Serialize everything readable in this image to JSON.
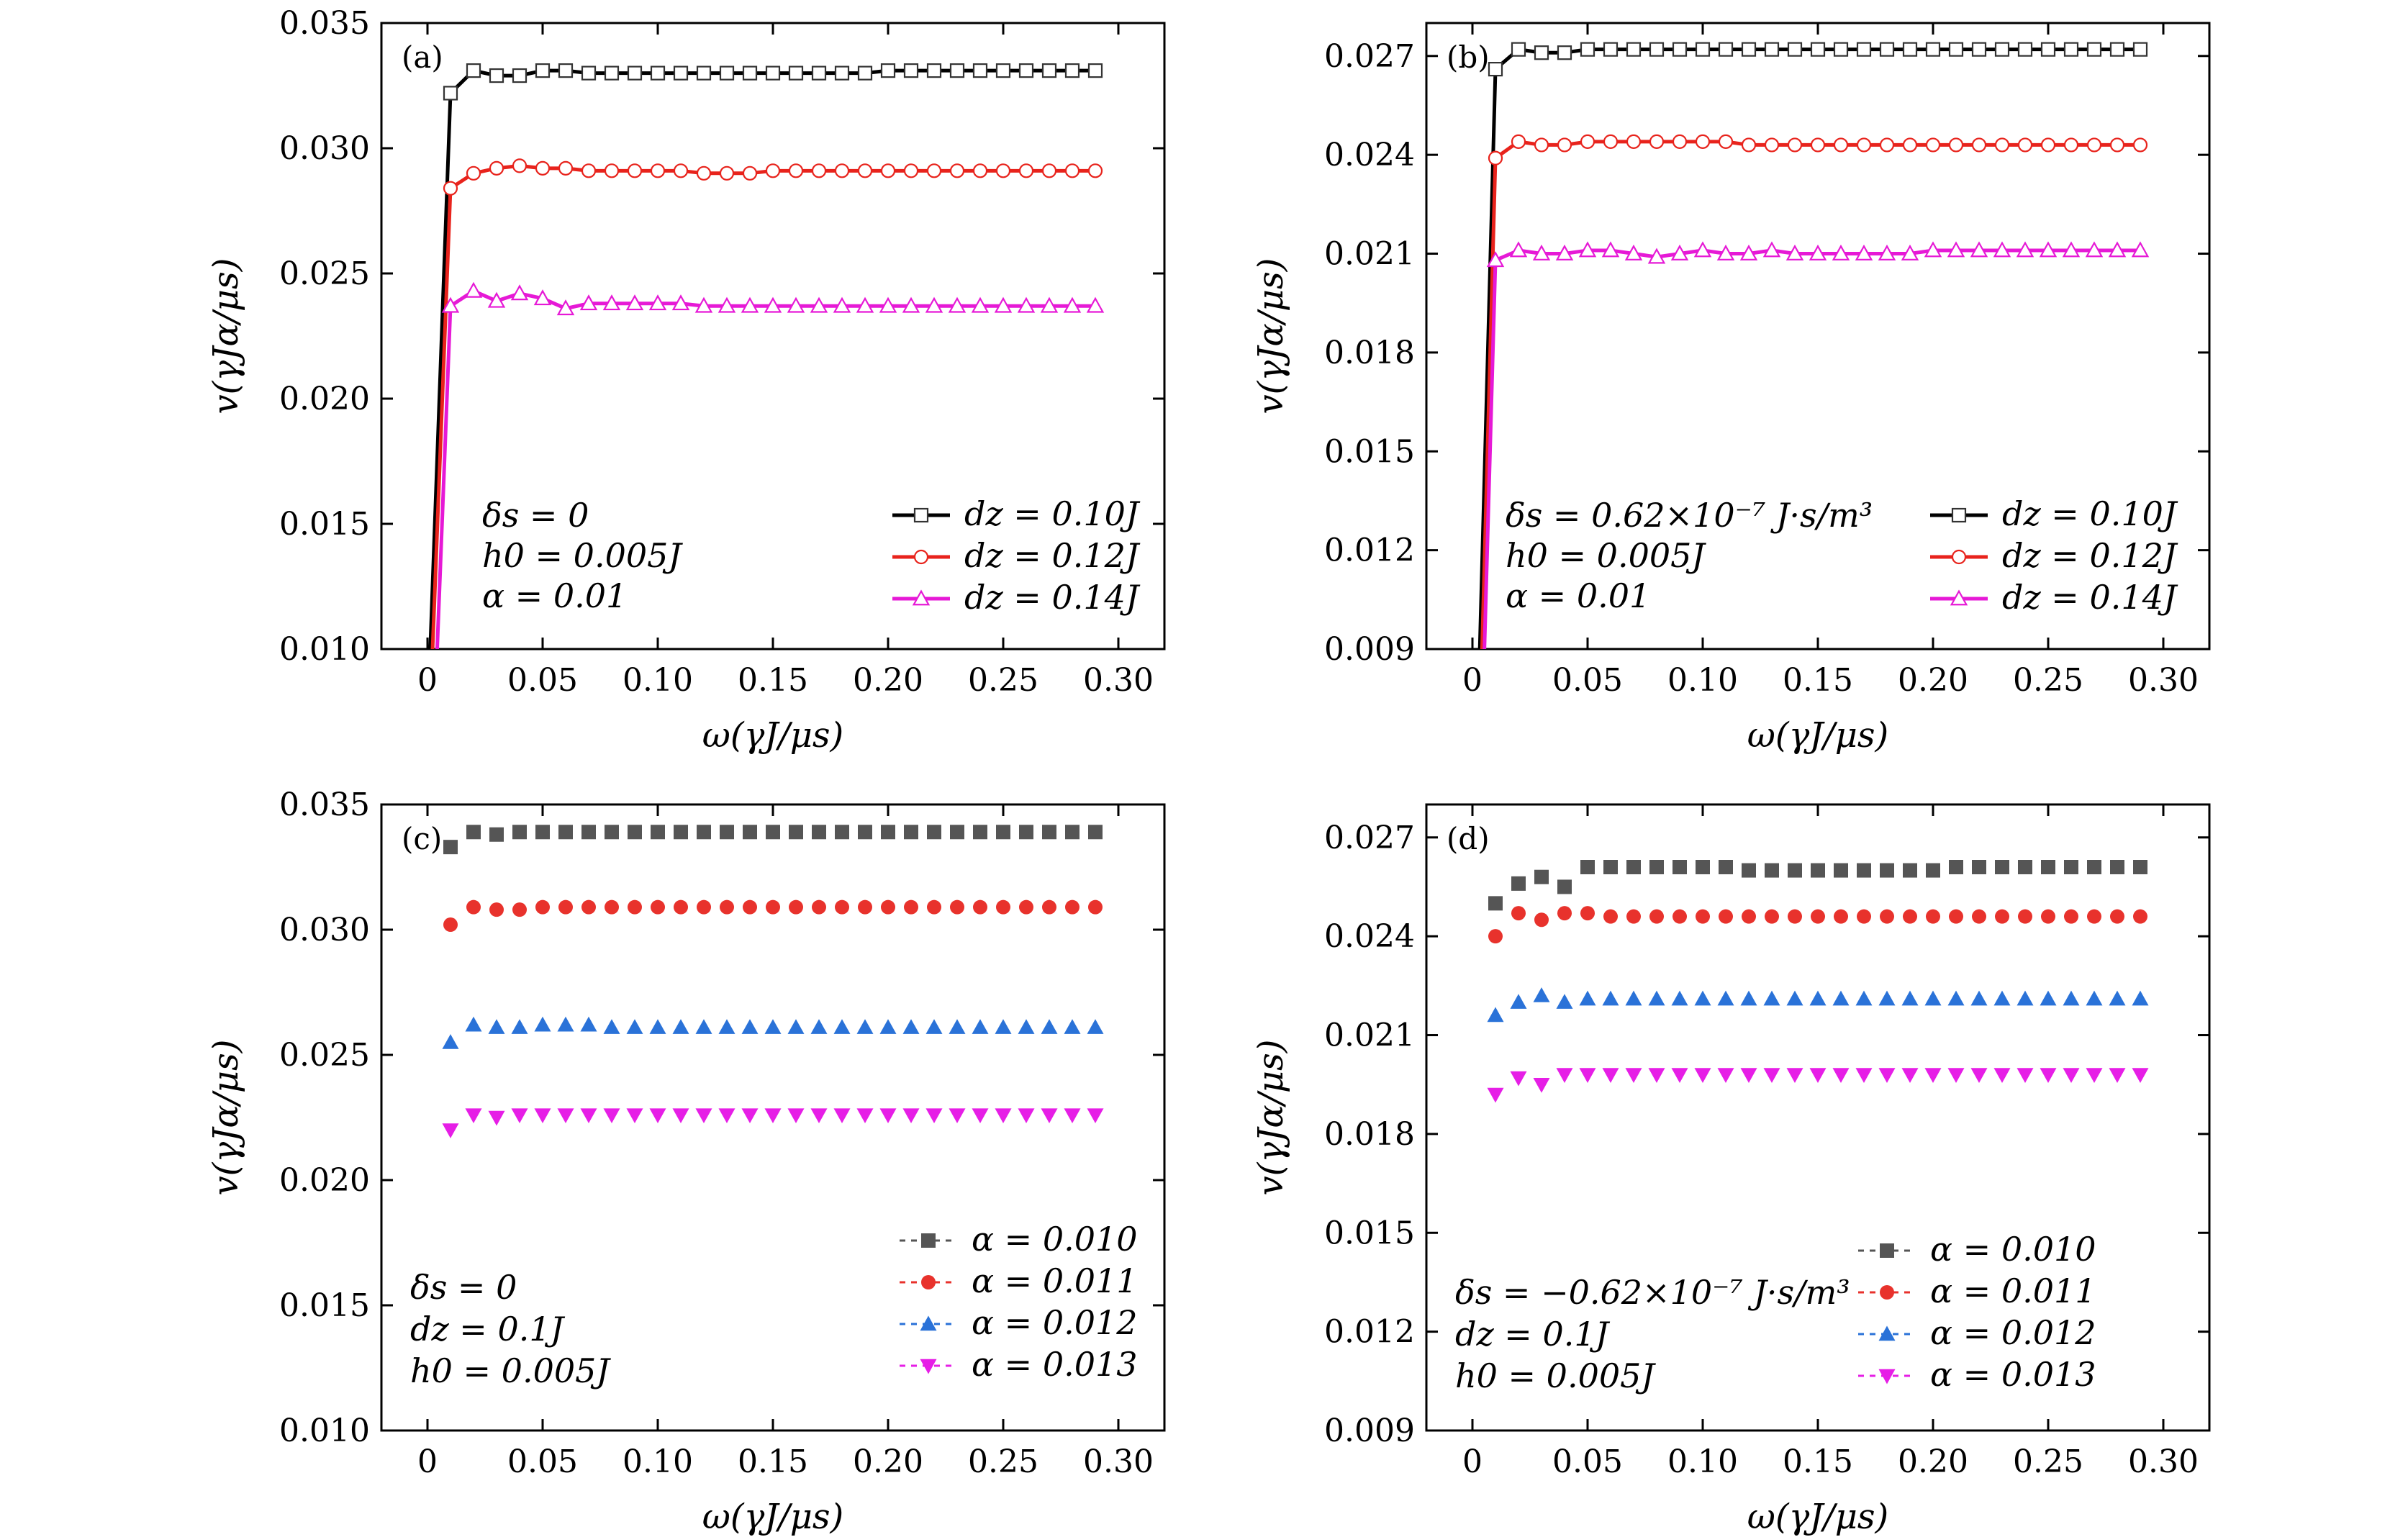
{
  "chart_data": [
    {
      "panel": "(a)",
      "type": "line",
      "marker_style": "open",
      "xlabel": "ω(γJ/μs)",
      "ylabel": "v(γJα/μs)",
      "xlim": [
        -0.02,
        0.32
      ],
      "ylim": [
        0.01,
        0.035
      ],
      "xticks": [
        "0",
        "0.05",
        "0.10",
        "0.15",
        "0.20",
        "0.25",
        "0.30"
      ],
      "yticks": [
        "0.010",
        "0.015",
        "0.020",
        "0.025",
        "0.030",
        "0.035"
      ],
      "annotation": [
        "δs = 0",
        "h0 = 0.005J",
        "α = 0.01"
      ],
      "legend_position": "lower-right",
      "series": [
        {
          "name": "dz = 0.10J",
          "color": "#000000",
          "marker": "square",
          "x0": 0.001,
          "y0": 0.0095,
          "values": [
            0.0322,
            0.0331,
            0.0329,
            0.0329,
            0.0331,
            0.0331,
            0.033,
            0.033,
            0.033,
            0.033,
            0.033,
            0.033,
            0.033,
            0.033,
            0.033,
            0.033,
            0.033,
            0.033,
            0.033,
            0.0331,
            0.0331,
            0.0331,
            0.0331,
            0.0331,
            0.0331,
            0.0331,
            0.0331,
            0.0331,
            0.0331
          ]
        },
        {
          "name": "dz = 0.12J",
          "color": "#e8231c",
          "marker": "circle",
          "x0": 0.002,
          "y0": 0.0095,
          "values": [
            0.0284,
            0.029,
            0.0292,
            0.0293,
            0.0292,
            0.0292,
            0.0291,
            0.0291,
            0.0291,
            0.0291,
            0.0291,
            0.029,
            0.029,
            0.029,
            0.0291,
            0.0291,
            0.0291,
            0.0291,
            0.0291,
            0.0291,
            0.0291,
            0.0291,
            0.0291,
            0.0291,
            0.0291,
            0.0291,
            0.0291,
            0.0291,
            0.0291
          ]
        },
        {
          "name": "dz = 0.14J",
          "color": "#e619d6",
          "marker": "triangle-up",
          "x0": 0.004,
          "y0": 0.0095,
          "values": [
            0.0237,
            0.0243,
            0.0239,
            0.0242,
            0.024,
            0.0236,
            0.0238,
            0.0238,
            0.0238,
            0.0238,
            0.0238,
            0.0237,
            0.0237,
            0.0237,
            0.0237,
            0.0237,
            0.0237,
            0.0237,
            0.0237,
            0.0237,
            0.0237,
            0.0237,
            0.0237,
            0.0237,
            0.0237,
            0.0237,
            0.0237,
            0.0237,
            0.0237
          ]
        }
      ]
    },
    {
      "panel": "(b)",
      "type": "line",
      "marker_style": "open",
      "xlabel": "ω(γJ/μs)",
      "ylabel": "v(γJα/μs)",
      "xlim": [
        -0.02,
        0.32
      ],
      "ylim": [
        0.009,
        0.028
      ],
      "xticks": [
        "0",
        "0.05",
        "0.10",
        "0.15",
        "0.20",
        "0.25",
        "0.30"
      ],
      "yticks": [
        "0.009",
        "0.012",
        "0.015",
        "0.018",
        "0.021",
        "0.024",
        "0.027"
      ],
      "annotation": [
        "δs = 0.62×10⁻⁷ J·s/m³",
        "h0 = 0.005J",
        "α = 0.01"
      ],
      "legend_position": "lower-right",
      "series": [
        {
          "name": "dz = 0.10J",
          "color": "#000000",
          "marker": "square",
          "x0": 0.003,
          "y0": 0.0085,
          "values": [
            0.0266,
            0.0272,
            0.0271,
            0.0271,
            0.0272,
            0.0272,
            0.0272,
            0.0272,
            0.0272,
            0.0272,
            0.0272,
            0.0272,
            0.0272,
            0.0272,
            0.0272,
            0.0272,
            0.0272,
            0.0272,
            0.0272,
            0.0272,
            0.0272,
            0.0272,
            0.0272,
            0.0272,
            0.0272,
            0.0272,
            0.0272,
            0.0272,
            0.0272
          ]
        },
        {
          "name": "dz = 0.12J",
          "color": "#e8231c",
          "marker": "circle",
          "x0": 0.004,
          "y0": 0.0085,
          "values": [
            0.0239,
            0.0244,
            0.0243,
            0.0243,
            0.0244,
            0.0244,
            0.0244,
            0.0244,
            0.0244,
            0.0244,
            0.0244,
            0.0243,
            0.0243,
            0.0243,
            0.0243,
            0.0243,
            0.0243,
            0.0243,
            0.0243,
            0.0243,
            0.0243,
            0.0243,
            0.0243,
            0.0243,
            0.0243,
            0.0243,
            0.0243,
            0.0243,
            0.0243
          ]
        },
        {
          "name": "dz = 0.14J",
          "color": "#e619d6",
          "marker": "triangle-up",
          "x0": 0.005,
          "y0": 0.0085,
          "values": [
            0.0208,
            0.0211,
            0.021,
            0.021,
            0.0211,
            0.0211,
            0.021,
            0.0209,
            0.021,
            0.0211,
            0.021,
            0.021,
            0.0211,
            0.021,
            0.021,
            0.021,
            0.021,
            0.021,
            0.021,
            0.0211,
            0.0211,
            0.0211,
            0.0211,
            0.0211,
            0.0211,
            0.0211,
            0.0211,
            0.0211,
            0.0211
          ]
        }
      ]
    },
    {
      "panel": "(c)",
      "type": "scatter",
      "marker_style": "filled",
      "xlabel": "ω(γJ/μs)",
      "ylabel": "v(γJα/μs)",
      "xlim": [
        -0.02,
        0.32
      ],
      "ylim": [
        0.01,
        0.035
      ],
      "xticks": [
        "0",
        "0.05",
        "0.10",
        "0.15",
        "0.20",
        "0.25",
        "0.30"
      ],
      "yticks": [
        "0.010",
        "0.015",
        "0.020",
        "0.025",
        "0.030",
        "0.035"
      ],
      "annotation": [
        "δs = 0",
        "dz = 0.1J",
        "h0 = 0.005J"
      ],
      "legend_position": "lower-right",
      "series": [
        {
          "name": "α = 0.010",
          "color": "#555555",
          "marker": "square",
          "values": [
            0.0333,
            0.0339,
            0.0338,
            0.0339,
            0.0339,
            0.0339,
            0.0339,
            0.0339,
            0.0339,
            0.0339,
            0.0339,
            0.0339,
            0.0339,
            0.0339,
            0.0339,
            0.0339,
            0.0339,
            0.0339,
            0.0339,
            0.0339,
            0.0339,
            0.0339,
            0.0339,
            0.0339,
            0.0339,
            0.0339,
            0.0339,
            0.0339,
            0.0339
          ]
        },
        {
          "name": "α = 0.011",
          "color": "#e8322c",
          "marker": "circle",
          "values": [
            0.0302,
            0.0309,
            0.0308,
            0.0308,
            0.0309,
            0.0309,
            0.0309,
            0.0309,
            0.0309,
            0.0309,
            0.0309,
            0.0309,
            0.0309,
            0.0309,
            0.0309,
            0.0309,
            0.0309,
            0.0309,
            0.0309,
            0.0309,
            0.0309,
            0.0309,
            0.0309,
            0.0309,
            0.0309,
            0.0309,
            0.0309,
            0.0309,
            0.0309
          ]
        },
        {
          "name": "α = 0.012",
          "color": "#2a72d8",
          "marker": "triangle-up",
          "values": [
            0.0255,
            0.0262,
            0.0261,
            0.0261,
            0.0262,
            0.0262,
            0.0262,
            0.0261,
            0.0261,
            0.0261,
            0.0261,
            0.0261,
            0.0261,
            0.0261,
            0.0261,
            0.0261,
            0.0261,
            0.0261,
            0.0261,
            0.0261,
            0.0261,
            0.0261,
            0.0261,
            0.0261,
            0.0261,
            0.0261,
            0.0261,
            0.0261,
            0.0261
          ]
        },
        {
          "name": "α = 0.013",
          "color": "#e61ee6",
          "marker": "triangle-down",
          "values": [
            0.022,
            0.0226,
            0.0225,
            0.0226,
            0.0226,
            0.0226,
            0.0226,
            0.0226,
            0.0226,
            0.0226,
            0.0226,
            0.0226,
            0.0226,
            0.0226,
            0.0226,
            0.0226,
            0.0226,
            0.0226,
            0.0226,
            0.0226,
            0.0226,
            0.0226,
            0.0226,
            0.0226,
            0.0226,
            0.0226,
            0.0226,
            0.0226,
            0.0226
          ]
        }
      ]
    },
    {
      "panel": "(d)",
      "type": "scatter",
      "marker_style": "filled",
      "xlabel": "ω(γJ/μs)",
      "ylabel": "v(γJα/μs)",
      "xlim": [
        -0.02,
        0.32
      ],
      "ylim": [
        0.009,
        0.028
      ],
      "xticks": [
        "0",
        "0.05",
        "0.10",
        "0.15",
        "0.20",
        "0.25",
        "0.30"
      ],
      "yticks": [
        "0.009",
        "0.012",
        "0.015",
        "0.018",
        "0.021",
        "0.024",
        "0.027"
      ],
      "annotation": [
        "δs = −0.62×10⁻⁷ J·s/m³",
        "dz = 0.1J",
        "h0 = 0.005J"
      ],
      "legend_position": "lower-right",
      "series": [
        {
          "name": "α = 0.010",
          "color": "#555555",
          "marker": "square",
          "values": [
            0.025,
            0.0256,
            0.0258,
            0.0255,
            0.0261,
            0.0261,
            0.0261,
            0.0261,
            0.0261,
            0.0261,
            0.0261,
            0.026,
            0.026,
            0.026,
            0.026,
            0.026,
            0.026,
            0.026,
            0.026,
            0.026,
            0.0261,
            0.0261,
            0.0261,
            0.0261,
            0.0261,
            0.0261,
            0.0261,
            0.0261,
            0.0261
          ]
        },
        {
          "name": "α = 0.011",
          "color": "#e8322c",
          "marker": "circle",
          "values": [
            0.024,
            0.0247,
            0.0245,
            0.0247,
            0.0247,
            0.0246,
            0.0246,
            0.0246,
            0.0246,
            0.0246,
            0.0246,
            0.0246,
            0.0246,
            0.0246,
            0.0246,
            0.0246,
            0.0246,
            0.0246,
            0.0246,
            0.0246,
            0.0246,
            0.0246,
            0.0246,
            0.0246,
            0.0246,
            0.0246,
            0.0246,
            0.0246,
            0.0246
          ]
        },
        {
          "name": "α = 0.012",
          "color": "#2a72d8",
          "marker": "triangle-up",
          "values": [
            0.0216,
            0.022,
            0.0222,
            0.022,
            0.0221,
            0.0221,
            0.0221,
            0.0221,
            0.0221,
            0.0221,
            0.0221,
            0.0221,
            0.0221,
            0.0221,
            0.0221,
            0.0221,
            0.0221,
            0.0221,
            0.0221,
            0.0221,
            0.0221,
            0.0221,
            0.0221,
            0.0221,
            0.0221,
            0.0221,
            0.0221,
            0.0221,
            0.0221
          ]
        },
        {
          "name": "α = 0.013",
          "color": "#e61ee6",
          "marker": "triangle-down",
          "values": [
            0.0192,
            0.0197,
            0.0195,
            0.0198,
            0.0198,
            0.0198,
            0.0198,
            0.0198,
            0.0198,
            0.0198,
            0.0198,
            0.0198,
            0.0198,
            0.0198,
            0.0198,
            0.0198,
            0.0198,
            0.0198,
            0.0198,
            0.0198,
            0.0198,
            0.0198,
            0.0198,
            0.0198,
            0.0198,
            0.0198,
            0.0198,
            0.0198,
            0.0198
          ]
        }
      ]
    }
  ]
}
